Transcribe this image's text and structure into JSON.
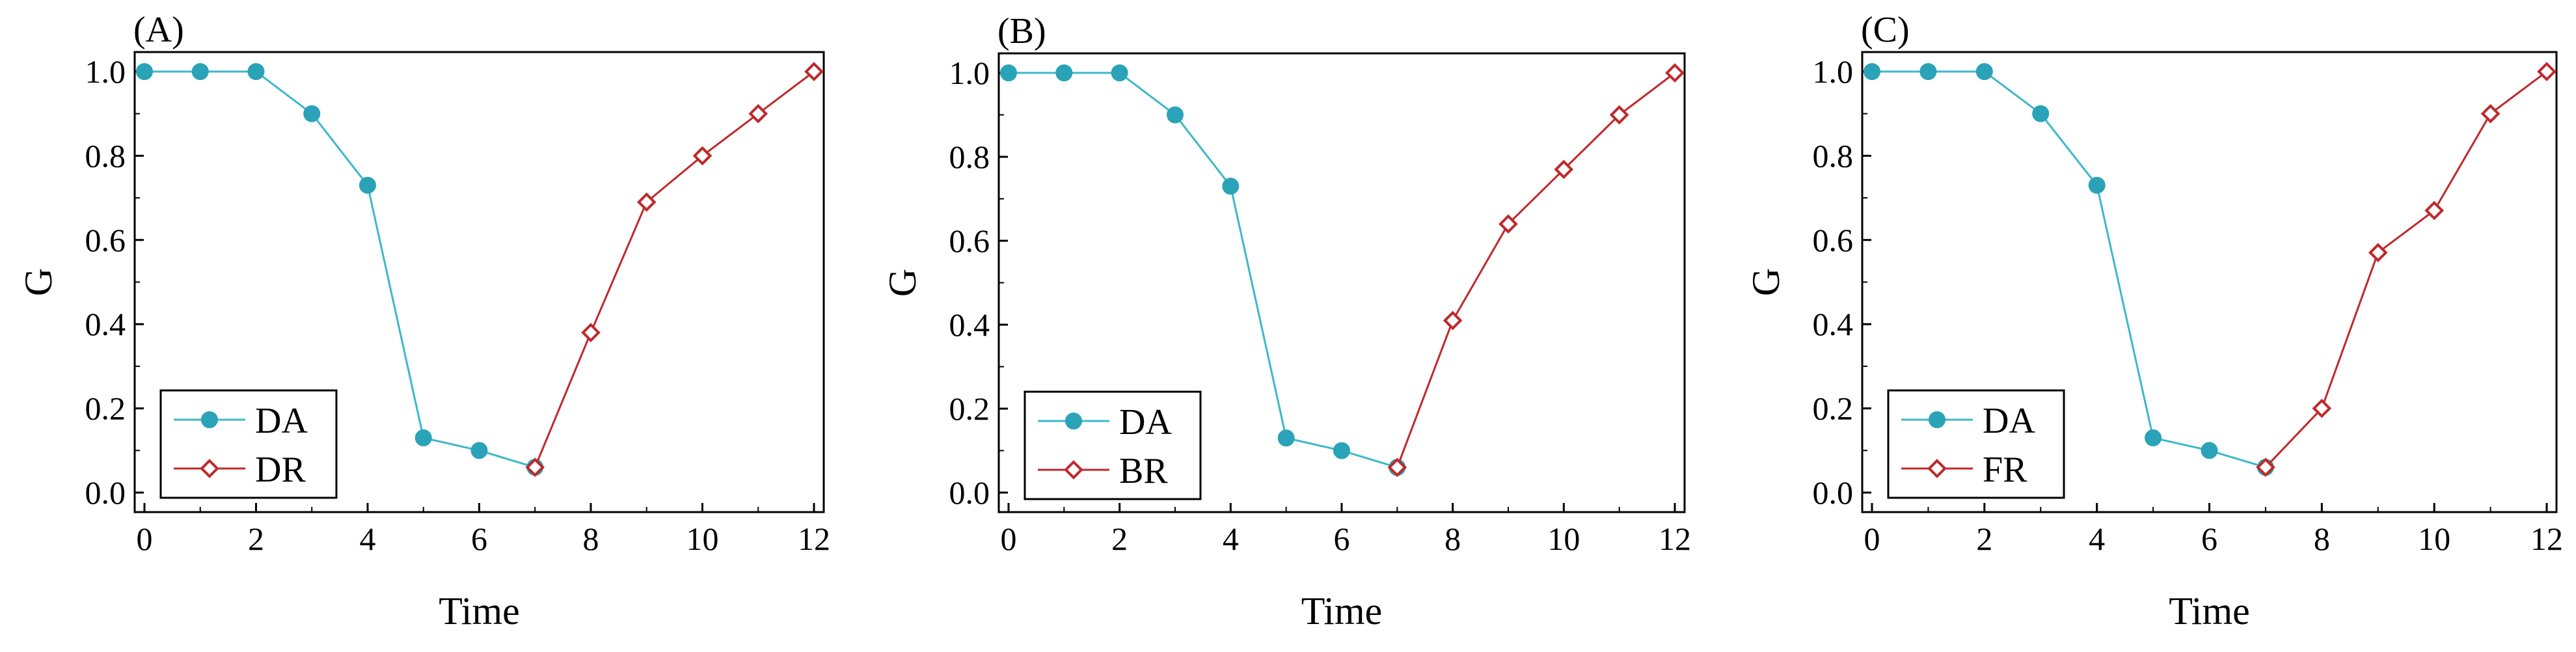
{
  "colors": {
    "damage": "#3DB8C9",
    "damage_marker": "#2AA3B8",
    "recovery": "#C0282B",
    "axis": "#000000",
    "background": "#ffffff"
  },
  "chart_data": [
    {
      "type": "line",
      "panel_label": "(A)",
      "xlabel": "Time",
      "ylabel": "G",
      "xlim": [
        0,
        12
      ],
      "ylim": [
        0.0,
        1.0
      ],
      "xticks": [
        0,
        2,
        4,
        6,
        8,
        10,
        12
      ],
      "yticks": [
        0.0,
        0.2,
        0.4,
        0.6,
        0.8,
        1.0
      ],
      "xtick_labels": [
        "0",
        "2",
        "4",
        "6",
        "8",
        "10",
        "12"
      ],
      "ytick_labels": [
        "0.0",
        "0.2",
        "0.4",
        "0.6",
        "0.8",
        "1.0"
      ],
      "legend_position": "bottom-left",
      "series": [
        {
          "name": "DA",
          "marker": "circle",
          "x": [
            0,
            1,
            2,
            3,
            4,
            5,
            6,
            7
          ],
          "y": [
            1.0,
            1.0,
            1.0,
            0.9,
            0.73,
            0.13,
            0.1,
            0.06
          ]
        },
        {
          "name": "DR",
          "marker": "diamond",
          "x": [
            7,
            8,
            9,
            10,
            11,
            12
          ],
          "y": [
            0.06,
            0.38,
            0.69,
            0.8,
            0.9,
            1.0
          ]
        }
      ]
    },
    {
      "type": "line",
      "panel_label": "(B)",
      "xlabel": "Time",
      "ylabel": "G",
      "xlim": [
        0,
        12
      ],
      "ylim": [
        0.0,
        1.0
      ],
      "xticks": [
        0,
        2,
        4,
        6,
        8,
        10,
        12
      ],
      "yticks": [
        0.0,
        0.2,
        0.4,
        0.6,
        0.8,
        1.0
      ],
      "xtick_labels": [
        "0",
        "2",
        "4",
        "6",
        "8",
        "10",
        "12"
      ],
      "ytick_labels": [
        "0.0",
        "0.2",
        "0.4",
        "0.6",
        "0.8",
        "1.0"
      ],
      "legend_position": "bottom-left",
      "series": [
        {
          "name": "DA",
          "marker": "circle",
          "x": [
            0,
            1,
            2,
            3,
            4,
            5,
            6,
            7
          ],
          "y": [
            1.0,
            1.0,
            1.0,
            0.9,
            0.73,
            0.13,
            0.1,
            0.06
          ]
        },
        {
          "name": "BR",
          "marker": "diamond",
          "x": [
            7,
            8,
            9,
            10,
            11,
            12
          ],
          "y": [
            0.06,
            0.41,
            0.64,
            0.77,
            0.9,
            1.0
          ]
        }
      ]
    },
    {
      "type": "line",
      "panel_label": "(C)",
      "xlabel": "Time",
      "ylabel": "G",
      "xlim": [
        0,
        12
      ],
      "ylim": [
        0.0,
        1.0
      ],
      "xticks": [
        0,
        2,
        4,
        6,
        8,
        10,
        12
      ],
      "yticks": [
        0.0,
        0.2,
        0.4,
        0.6,
        0.8,
        1.0
      ],
      "xtick_labels": [
        "0",
        "2",
        "4",
        "6",
        "8",
        "10",
        "12"
      ],
      "ytick_labels": [
        "0.0",
        "0.2",
        "0.4",
        "0.6",
        "0.8",
        "1.0"
      ],
      "legend_position": "bottom-left",
      "series": [
        {
          "name": "DA",
          "marker": "circle",
          "x": [
            0,
            1,
            2,
            3,
            4,
            5,
            6,
            7
          ],
          "y": [
            1.0,
            1.0,
            1.0,
            0.9,
            0.73,
            0.13,
            0.1,
            0.06
          ]
        },
        {
          "name": "FR",
          "marker": "diamond",
          "x": [
            7,
            8,
            9,
            10,
            11,
            12
          ],
          "y": [
            0.06,
            0.2,
            0.57,
            0.67,
            0.9,
            1.0
          ]
        }
      ]
    }
  ]
}
